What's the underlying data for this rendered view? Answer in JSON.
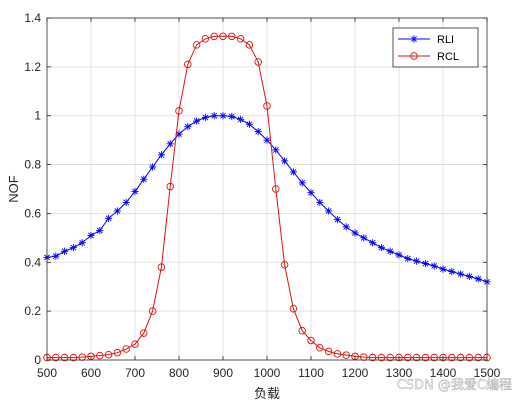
{
  "chart_data": {
    "type": "line",
    "xlabel": "负载",
    "ylabel": "NOF",
    "xlim": [
      500,
      1500
    ],
    "ylim": [
      0,
      1.4
    ],
    "x_ticks": [
      500,
      600,
      700,
      800,
      900,
      1000,
      1100,
      1200,
      1300,
      1400,
      1500
    ],
    "y_ticks": [
      0,
      0.2,
      0.4,
      0.6,
      0.8,
      1,
      1.2,
      1.4
    ],
    "grid": true,
    "legend_position": "top-right",
    "series": [
      {
        "name": "RLI",
        "color": "#0000ff",
        "marker": "asterisk",
        "x": [
          500,
          520,
          540,
          560,
          580,
          600,
          620,
          640,
          660,
          680,
          700,
          720,
          740,
          760,
          780,
          800,
          820,
          840,
          860,
          880,
          900,
          920,
          940,
          960,
          980,
          1000,
          1020,
          1040,
          1060,
          1080,
          1100,
          1120,
          1140,
          1160,
          1180,
          1200,
          1220,
          1240,
          1260,
          1280,
          1300,
          1320,
          1340,
          1360,
          1380,
          1400,
          1420,
          1440,
          1460,
          1480,
          1500
        ],
        "values": [
          0.42,
          0.425,
          0.445,
          0.46,
          0.48,
          0.51,
          0.53,
          0.58,
          0.61,
          0.645,
          0.69,
          0.74,
          0.79,
          0.84,
          0.885,
          0.925,
          0.955,
          0.978,
          0.993,
          1.0,
          1.0,
          0.997,
          0.985,
          0.965,
          0.935,
          0.9,
          0.86,
          0.815,
          0.77,
          0.725,
          0.685,
          0.645,
          0.61,
          0.575,
          0.545,
          0.52,
          0.5,
          0.48,
          0.46,
          0.445,
          0.43,
          0.415,
          0.405,
          0.395,
          0.385,
          0.372,
          0.362,
          0.352,
          0.342,
          0.332,
          0.32
        ]
      },
      {
        "name": "RCL",
        "color": "#e3120b",
        "marker": "circle",
        "x": [
          500,
          520,
          540,
          560,
          580,
          600,
          620,
          640,
          660,
          680,
          700,
          720,
          740,
          760,
          780,
          800,
          820,
          840,
          860,
          880,
          900,
          920,
          940,
          960,
          980,
          1000,
          1020,
          1040,
          1060,
          1080,
          1100,
          1120,
          1140,
          1160,
          1180,
          1200,
          1220,
          1240,
          1260,
          1280,
          1300,
          1320,
          1340,
          1360,
          1380,
          1400,
          1420,
          1440,
          1460,
          1480,
          1500
        ],
        "values": [
          0.01,
          0.01,
          0.01,
          0.01,
          0.012,
          0.015,
          0.018,
          0.022,
          0.03,
          0.045,
          0.065,
          0.11,
          0.2,
          0.38,
          0.71,
          1.02,
          1.21,
          1.29,
          1.315,
          1.325,
          1.325,
          1.325,
          1.315,
          1.29,
          1.22,
          1.04,
          0.7,
          0.39,
          0.21,
          0.12,
          0.08,
          0.05,
          0.035,
          0.025,
          0.02,
          0.015,
          0.012,
          0.01,
          0.01,
          0.01,
          0.01,
          0.01,
          0.01,
          0.01,
          0.01,
          0.01,
          0.01,
          0.01,
          0.01,
          0.01,
          0.01
        ]
      }
    ]
  },
  "watermark": "CSDN @我爱C编程"
}
